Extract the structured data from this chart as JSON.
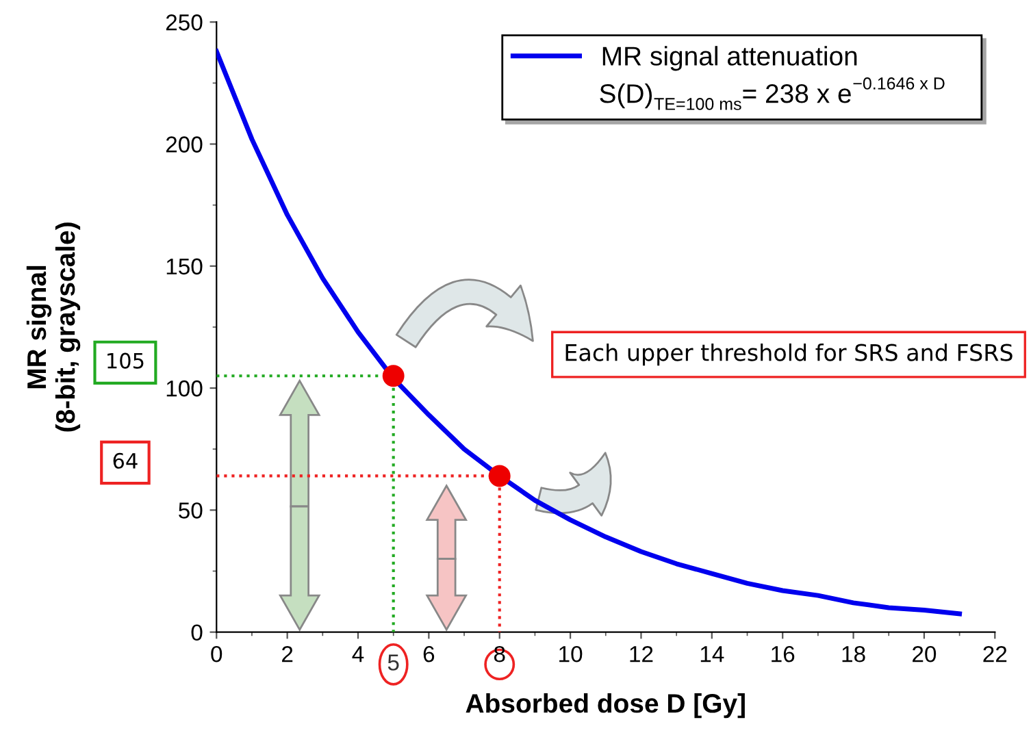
{
  "chart_data": {
    "type": "line",
    "xlabel": "Absorbed dose D [Gy]",
    "ylabel": "MR signal\n(8-bit, grayscale)",
    "xlim": [
      0,
      22
    ],
    "xticks": [
      0,
      2,
      4,
      6,
      8,
      10,
      12,
      14,
      16,
      18,
      20,
      22
    ],
    "ylim": [
      0,
      250
    ],
    "yticks": [
      0,
      50,
      100,
      150,
      200,
      250
    ],
    "grid": false,
    "legend": "top right",
    "marker": "none",
    "line_style": "solid",
    "series": [
      {
        "name": "MR signal attenuation",
        "color": "#0000ee",
        "x": [
          0,
          1,
          2,
          3,
          4,
          5,
          6,
          7,
          8,
          9,
          10,
          11,
          12,
          13,
          14,
          15,
          16,
          17,
          18,
          19,
          20,
          21
        ],
        "values": [
          238,
          202,
          171,
          145,
          123,
          104,
          89,
          75,
          64,
          54,
          46,
          39,
          33,
          28,
          24,
          20,
          17,
          15,
          12,
          10,
          9,
          7.5
        ]
      },
      {
        "type": "scatter",
        "color": "#ee0000",
        "marker": "circle",
        "x": [
          5,
          8
        ],
        "values": [
          105,
          64
        ]
      },
      {
        "type": "line",
        "color": "#22aa22",
        "line_style": "dotted",
        "x": [
          0,
          5,
          5
        ],
        "values": [
          105,
          105,
          0
        ]
      },
      {
        "type": "line",
        "color": "#ee2222",
        "line_style": "dotted",
        "x": [
          0,
          8,
          8
        ],
        "values": [
          64,
          64,
          0
        ]
      }
    ],
    "annotations": [
      "S(D)$_{TE=100 ms}$= 238 x e$^{−0.1646 x D}$",
      "105",
      "64",
      {
        "text": "5",
        "x": 5,
        "y": 0
      },
      "Each upper threshold for SRS and FSRS"
    ]
  }
}
